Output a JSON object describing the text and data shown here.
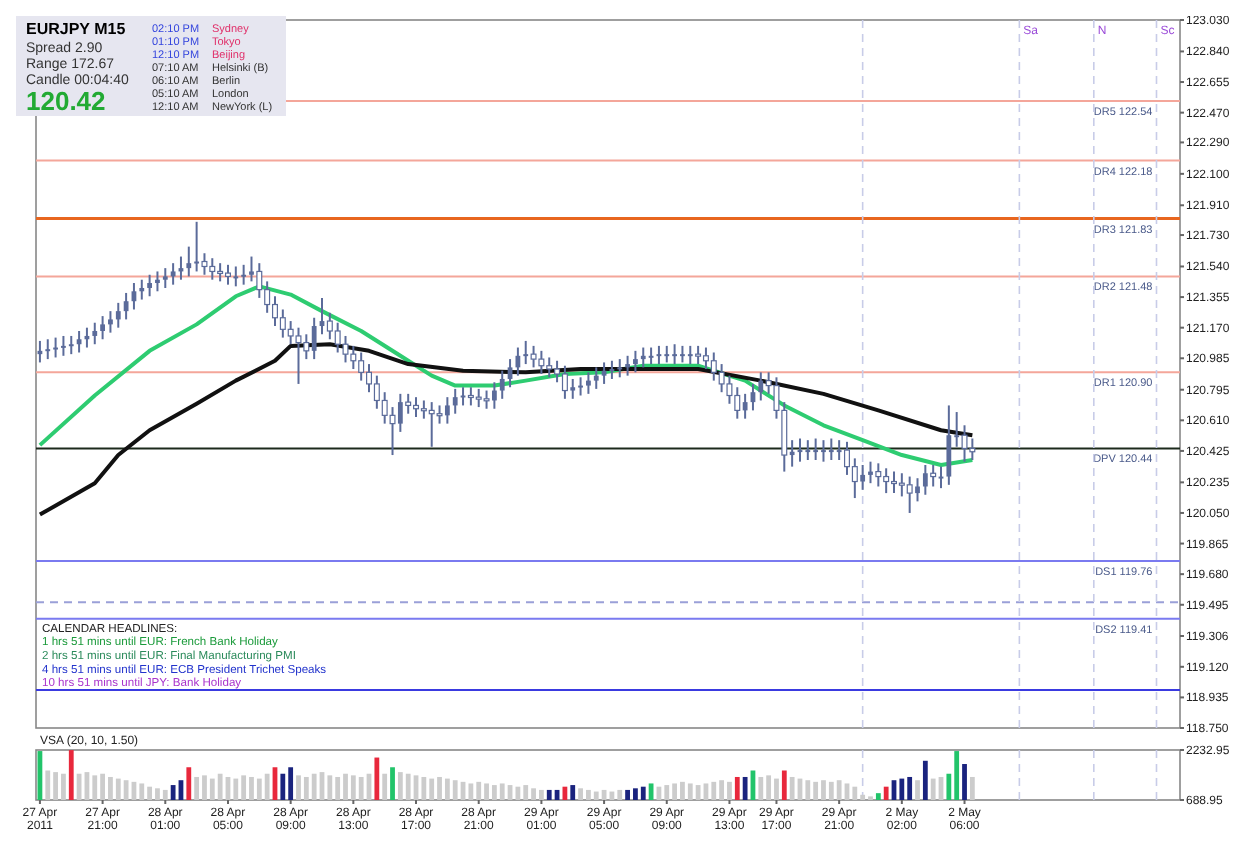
{
  "chart_data": [
    {
      "type": "candlestick",
      "title": "EURJPY  M15",
      "color": "#5b6b9a",
      "categories": [
        null,
        null,
        null,
        null,
        null,
        null,
        null,
        null,
        null,
        null,
        null,
        null,
        null,
        null,
        null,
        null,
        null,
        null,
        null,
        null,
        null,
        null,
        null,
        null,
        null,
        null,
        null,
        null,
        null,
        null,
        null,
        null,
        null,
        null,
        null,
        null,
        null,
        null,
        null,
        null,
        null,
        null,
        null,
        null,
        null,
        null,
        null,
        null,
        null,
        null,
        null,
        null,
        null,
        null,
        null,
        null,
        null,
        null,
        null,
        null,
        null,
        null,
        null,
        null,
        null,
        null,
        null,
        null,
        null,
        null,
        null,
        null,
        null,
        null,
        null,
        null,
        null,
        null,
        null,
        null,
        null,
        null,
        null,
        null,
        null,
        null,
        null,
        null,
        null,
        null,
        null,
        null,
        null,
        null,
        null,
        null,
        null,
        null,
        null,
        null,
        null,
        null,
        null,
        null,
        null,
        null,
        null,
        null,
        null,
        null,
        null,
        null,
        null,
        null,
        null,
        null,
        null,
        null,
        null,
        null,
        null,
        null,
        null,
        null,
        null,
        null,
        null,
        null,
        null,
        null,
        null,
        null,
        null,
        null,
        null,
        null,
        null,
        null,
        null,
        null,
        null,
        null,
        null,
        null,
        null,
        null
      ],
      "ylim": [
        118.75,
        123.03
      ],
      "yticks": [
        {
          "value": 123.03,
          "label": "123.030"
        },
        {
          "value": 122.84,
          "label": "122.840"
        },
        {
          "value": 122.655,
          "label": "122.655"
        },
        {
          "value": 122.47,
          "label": "122.470"
        },
        {
          "value": 122.29,
          "label": "122.290"
        },
        {
          "value": 122.1,
          "label": "122.100"
        },
        {
          "value": 121.91,
          "label": "121.910"
        },
        {
          "value": 121.73,
          "label": "121.730"
        },
        {
          "value": 121.54,
          "label": "121.540"
        },
        {
          "value": 121.355,
          "label": "121.355"
        },
        {
          "value": 121.17,
          "label": "121.170"
        },
        {
          "value": 120.985,
          "label": "120.985"
        },
        {
          "value": 120.795,
          "label": "120.795"
        },
        {
          "value": 120.61,
          "label": "120.610"
        },
        {
          "value": 120.425,
          "label": "120.425"
        },
        {
          "value": 120.235,
          "label": "120.235"
        },
        {
          "value": 120.05,
          "label": "120.050"
        },
        {
          "value": 119.865,
          "label": "119.865"
        },
        {
          "value": 119.68,
          "label": "119.680"
        },
        {
          "value": 119.495,
          "label": "119.495"
        },
        {
          "value": 119.306,
          "label": "119.306"
        },
        {
          "value": 119.12,
          "label": "119.120"
        },
        {
          "value": 118.935,
          "label": "118.935"
        },
        {
          "value": 118.75,
          "label": "118.750"
        }
      ],
      "ohlc": [
        [
          121.01,
          121.09,
          120.96,
          121.03
        ],
        [
          121.03,
          121.1,
          120.98,
          121.04
        ],
        [
          121.04,
          121.11,
          120.99,
          121.05
        ],
        [
          121.05,
          121.12,
          121.0,
          121.06
        ],
        [
          121.06,
          121.12,
          121.01,
          121.07
        ],
        [
          121.07,
          121.15,
          121.02,
          121.1
        ],
        [
          121.1,
          121.17,
          121.05,
          121.12
        ],
        [
          121.12,
          121.2,
          121.07,
          121.15
        ],
        [
          121.15,
          121.24,
          121.1,
          121.19
        ],
        [
          121.19,
          121.27,
          121.14,
          121.22
        ],
        [
          121.22,
          121.32,
          121.17,
          121.27
        ],
        [
          121.27,
          121.38,
          121.22,
          121.33
        ],
        [
          121.33,
          121.44,
          121.28,
          121.39
        ],
        [
          121.39,
          121.46,
          121.34,
          121.41
        ],
        [
          121.41,
          121.49,
          121.36,
          121.44
        ],
        [
          121.44,
          121.51,
          121.39,
          121.46
        ],
        [
          121.46,
          121.53,
          121.41,
          121.48
        ],
        [
          121.48,
          121.56,
          121.43,
          121.51
        ],
        [
          121.51,
          121.6,
          121.46,
          121.53
        ],
        [
          121.53,
          121.66,
          121.48,
          121.56
        ],
        [
          121.56,
          121.81,
          121.51,
          121.57
        ],
        [
          121.57,
          121.62,
          121.49,
          121.54
        ],
        [
          121.54,
          121.59,
          121.46,
          121.51
        ],
        [
          121.51,
          121.56,
          121.45,
          121.5
        ],
        [
          121.5,
          121.55,
          121.43,
          121.48
        ],
        [
          121.48,
          121.54,
          121.42,
          121.48
        ],
        [
          121.48,
          121.55,
          121.43,
          121.49
        ],
        [
          121.49,
          121.6,
          121.45,
          121.51
        ],
        [
          121.51,
          121.56,
          121.35,
          121.4
        ],
        [
          121.4,
          121.45,
          121.26,
          121.31
        ],
        [
          121.31,
          121.36,
          121.18,
          121.23
        ],
        [
          121.23,
          121.28,
          121.11,
          121.16
        ],
        [
          121.16,
          121.21,
          121.07,
          121.12
        ],
        [
          121.12,
          121.17,
          120.83,
          121.08
        ],
        [
          121.08,
          121.13,
          120.98,
          121.03
        ],
        [
          121.03,
          121.23,
          120.98,
          121.18
        ],
        [
          121.18,
          121.35,
          121.13,
          121.21
        ],
        [
          121.21,
          121.26,
          121.1,
          121.15
        ],
        [
          121.15,
          121.2,
          121.02,
          121.07
        ],
        [
          121.07,
          121.12,
          120.96,
          121.01
        ],
        [
          121.01,
          121.06,
          120.92,
          120.97
        ],
        [
          120.97,
          121.02,
          120.85,
          120.9
        ],
        [
          120.9,
          120.95,
          120.78,
          120.83
        ],
        [
          120.83,
          120.88,
          120.68,
          120.73
        ],
        [
          120.73,
          120.78,
          120.59,
          120.64
        ],
        [
          120.64,
          120.69,
          120.4,
          120.59
        ],
        [
          120.59,
          120.77,
          120.54,
          120.72
        ],
        [
          120.72,
          120.77,
          120.65,
          120.7
        ],
        [
          120.7,
          120.75,
          120.63,
          120.68
        ],
        [
          120.68,
          120.73,
          120.62,
          120.67
        ],
        [
          120.67,
          120.72,
          120.45,
          120.65
        ],
        [
          120.65,
          120.7,
          120.59,
          120.64
        ],
        [
          120.64,
          120.75,
          120.59,
          120.7
        ],
        [
          120.7,
          120.8,
          120.65,
          120.75
        ],
        [
          120.75,
          120.81,
          120.7,
          120.76
        ],
        [
          120.76,
          120.81,
          120.7,
          120.75
        ],
        [
          120.75,
          120.8,
          120.69,
          120.74
        ],
        [
          120.74,
          120.79,
          120.68,
          120.73
        ],
        [
          120.73,
          120.84,
          120.68,
          120.79
        ],
        [
          120.79,
          120.91,
          120.74,
          120.86
        ],
        [
          120.86,
          120.98,
          120.81,
          120.93
        ],
        [
          120.93,
          121.05,
          120.88,
          121.0
        ],
        [
          121.0,
          121.09,
          120.95,
          121.01
        ],
        [
          121.01,
          121.06,
          120.93,
          120.98
        ],
        [
          120.98,
          121.03,
          120.89,
          120.94
        ],
        [
          120.94,
          120.99,
          120.87,
          120.92
        ],
        [
          120.92,
          120.97,
          120.84,
          120.89
        ],
        [
          120.89,
          120.94,
          120.74,
          120.79
        ],
        [
          120.79,
          120.86,
          120.74,
          120.81
        ],
        [
          120.81,
          120.87,
          120.76,
          120.82
        ],
        [
          120.82,
          120.9,
          120.77,
          120.85
        ],
        [
          120.85,
          120.93,
          120.8,
          120.88
        ],
        [
          120.88,
          120.96,
          120.83,
          120.91
        ],
        [
          120.91,
          120.97,
          120.86,
          120.92
        ],
        [
          120.92,
          120.98,
          120.87,
          120.93
        ],
        [
          120.93,
          121.0,
          120.88,
          120.95
        ],
        [
          120.95,
          121.03,
          120.9,
          120.98
        ],
        [
          120.98,
          121.05,
          120.93,
          121.0
        ],
        [
          121.0,
          121.05,
          120.95,
          121.0
        ],
        [
          121.0,
          121.06,
          120.95,
          121.01
        ],
        [
          121.01,
          121.06,
          120.96,
          121.01
        ],
        [
          121.01,
          121.07,
          120.95,
          121.01
        ],
        [
          121.01,
          121.06,
          120.96,
          121.01
        ],
        [
          121.01,
          121.06,
          120.95,
          121.01
        ],
        [
          121.01,
          121.06,
          120.95,
          121.0
        ],
        [
          121.0,
          121.05,
          120.92,
          120.97
        ],
        [
          120.97,
          121.02,
          120.85,
          120.9
        ],
        [
          120.9,
          120.95,
          120.78,
          120.83
        ],
        [
          120.83,
          120.88,
          120.71,
          120.76
        ],
        [
          120.76,
          120.81,
          120.62,
          120.67
        ],
        [
          120.67,
          120.77,
          120.62,
          120.72
        ],
        [
          120.72,
          120.83,
          120.67,
          120.78
        ],
        [
          120.78,
          120.9,
          120.73,
          120.85
        ],
        [
          120.85,
          120.9,
          120.77,
          120.82
        ],
        [
          120.82,
          120.87,
          120.62,
          120.67
        ],
        [
          120.67,
          120.72,
          120.3,
          120.4
        ],
        [
          120.4,
          120.49,
          120.33,
          120.42
        ],
        [
          120.42,
          120.5,
          120.36,
          120.43
        ],
        [
          120.43,
          120.49,
          120.37,
          120.43
        ],
        [
          120.43,
          120.5,
          120.37,
          120.43
        ],
        [
          120.43,
          120.49,
          120.36,
          120.43
        ],
        [
          120.43,
          120.5,
          120.37,
          120.43
        ],
        [
          120.43,
          120.49,
          120.37,
          120.43
        ],
        [
          120.43,
          120.48,
          120.28,
          120.33
        ],
        [
          120.33,
          120.38,
          120.14,
          120.24
        ],
        [
          120.24,
          120.34,
          120.19,
          120.28
        ],
        [
          120.28,
          120.36,
          120.23,
          120.3
        ],
        [
          120.3,
          120.35,
          120.21,
          120.27
        ],
        [
          120.27,
          120.32,
          120.17,
          120.24
        ],
        [
          120.24,
          120.3,
          120.17,
          120.23
        ],
        [
          120.23,
          120.29,
          120.15,
          120.22
        ],
        [
          120.22,
          120.27,
          120.05,
          120.17
        ],
        [
          120.17,
          120.26,
          120.12,
          120.21
        ],
        [
          120.21,
          120.34,
          120.16,
          120.29
        ],
        [
          120.29,
          120.34,
          120.21,
          120.27
        ],
        [
          120.27,
          120.33,
          120.2,
          120.27
        ],
        [
          120.27,
          120.7,
          120.22,
          120.52
        ],
        [
          120.52,
          120.66,
          120.45,
          120.52
        ],
        [
          120.52,
          120.58,
          120.36,
          120.44
        ],
        [
          120.44,
          120.5,
          120.37,
          120.42
        ],
        null,
        null,
        null,
        null,
        null,
        null,
        null,
        null,
        null,
        null,
        null,
        null,
        null,
        null,
        null,
        null,
        null,
        null,
        null,
        null,
        null,
        null,
        null,
        null,
        null,
        null
      ],
      "series": [
        {
          "type": "line",
          "color": "#2ecc71",
          "values": [
            120.46,
            null,
            null,
            null,
            null,
            null,
            null,
            120.76,
            null,
            null,
            null,
            null,
            null,
            null,
            121.03,
            null,
            null,
            null,
            null,
            null,
            121.19,
            null,
            null,
            null,
            null,
            121.36,
            null,
            null,
            121.42,
            null,
            null,
            null,
            121.37,
            null,
            null,
            null,
            121.27,
            null,
            null,
            null,
            null,
            121.15,
            null,
            null,
            null,
            null,
            121.0,
            null,
            null,
            null,
            120.88,
            null,
            null,
            120.82,
            null,
            null,
            null,
            null,
            120.82,
            null,
            null,
            null,
            120.85,
            null,
            null,
            null,
            null,
            120.89,
            null,
            null,
            null,
            null,
            120.9,
            null,
            null,
            null,
            null,
            120.94,
            null,
            null,
            null,
            null,
            null,
            null,
            120.94,
            null,
            null,
            null,
            null,
            null,
            120.85,
            null,
            null,
            null,
            null,
            120.7,
            null,
            null,
            null,
            null,
            120.58,
            null,
            null,
            null,
            null,
            120.49,
            null,
            null,
            null,
            null,
            120.4,
            null,
            null,
            null,
            null,
            120.34,
            null,
            null,
            null,
            120.37,
            null,
            null,
            null,
            null,
            null,
            null,
            null,
            null,
            null,
            null,
            null,
            null,
            null,
            null,
            null,
            null,
            null,
            null,
            null,
            null,
            null,
            null,
            null,
            null,
            null,
            null
          ]
        },
        {
          "type": "line",
          "color": "#111111",
          "values": [
            120.04,
            null,
            null,
            null,
            null,
            null,
            null,
            120.23,
            null,
            null,
            120.4,
            null,
            null,
            null,
            120.55,
            null,
            null,
            null,
            null,
            null,
            120.71,
            null,
            null,
            null,
            null,
            120.85,
            null,
            null,
            null,
            null,
            120.97,
            null,
            121.06,
            null,
            null,
            null,
            null,
            121.07,
            null,
            null,
            null,
            null,
            121.03,
            null,
            null,
            null,
            null,
            120.95,
            null,
            null,
            null,
            null,
            null,
            null,
            120.91,
            null,
            null,
            null,
            null,
            null,
            null,
            null,
            120.9,
            null,
            null,
            null,
            null,
            null,
            null,
            120.92,
            null,
            null,
            null,
            null,
            null,
            null,
            null,
            120.92,
            null,
            null,
            null,
            null,
            null,
            null,
            120.92,
            null,
            null,
            null,
            null,
            null,
            null,
            null,
            120.85,
            null,
            null,
            null,
            null,
            null,
            null,
            null,
            120.77,
            null,
            null,
            null,
            null,
            null,
            null,
            120.67,
            null,
            null,
            null,
            null,
            null,
            null,
            null,
            120.55,
            null,
            null,
            null,
            120.52,
            null,
            null,
            null,
            null,
            null,
            null,
            null,
            null,
            null,
            null,
            null,
            null,
            null,
            null,
            null,
            null,
            null,
            null,
            null,
            null,
            null,
            null,
            null,
            null,
            null,
            null
          ]
        }
      ],
      "ref_lines": [
        {
          "axis": "y",
          "value": 122.54,
          "label": "DR5 122.54",
          "color": "#f4a69a"
        },
        {
          "axis": "y",
          "value": 122.18,
          "label": "DR4 122.18",
          "color": "#f4a69a"
        },
        {
          "axis": "y",
          "value": 121.83,
          "label": "DR3 121.83",
          "color": "#e8661f"
        },
        {
          "axis": "y",
          "value": 121.48,
          "label": "DR2 121.48",
          "color": "#f4a69a"
        },
        {
          "axis": "y",
          "value": 120.9,
          "label": "DR1 120.90",
          "color": "#f4a69a"
        },
        {
          "axis": "y",
          "value": 120.44,
          "label": "DPV 120.44",
          "color": "#1c2a1c"
        },
        {
          "axis": "y",
          "value": 119.76,
          "label": "DS1 119.76",
          "color": "#7a7af0"
        },
        {
          "axis": "y",
          "value": 119.51,
          "label": null,
          "color": "#9aa0d8",
          "line_style": "dashed"
        },
        {
          "axis": "y",
          "value": 119.41,
          "label": "DS2 119.41",
          "color": "#7a7af0"
        },
        {
          "axis": "y",
          "value": 118.98,
          "label": null,
          "color": "#3a3ae0"
        }
      ],
      "annotations": [
        "Spread 2.90",
        "Range 172.67",
        "Candle 00:04:40",
        "120.42",
        "02:10 PM",
        "Sydney",
        "01:10 PM",
        "Tokyo",
        "12:10 PM",
        "Beijing",
        "07:10 AM",
        "Helsinki (B)",
        "06:10 AM",
        "Berlin",
        "05:10 AM",
        "London",
        "12:10 AM",
        "NewYork (L)",
        "CALENDAR HEADLINES:",
        "1 hrs 51 mins until EUR: French Bank Holiday",
        "2 hrs 51 mins until EUR: Final Manufacturing PMI",
        "4 hrs 51 mins until EUR: ECB President Trichet Speaks",
        "10 hrs 51 mins until JPY: Bank Holiday",
        "Sa",
        "N",
        "Sc"
      ]
    },
    {
      "type": "bar",
      "title": "VSA (20, 10, 1.50)",
      "categories": [
        "27 Apr 2011",
        null,
        null,
        null,
        null,
        null,
        null,
        null,
        "27 Apr 21:00",
        null,
        null,
        null,
        null,
        null,
        null,
        null,
        "28 Apr 01:00",
        null,
        null,
        null,
        null,
        null,
        null,
        null,
        "28 Apr 05:00",
        null,
        null,
        null,
        null,
        null,
        null,
        null,
        "28 Apr 09:00",
        null,
        null,
        null,
        null,
        null,
        null,
        null,
        "28 Apr 13:00",
        null,
        null,
        null,
        null,
        null,
        null,
        null,
        "28 Apr 17:00",
        null,
        null,
        null,
        null,
        null,
        null,
        null,
        "28 Apr 21:00",
        null,
        null,
        null,
        null,
        null,
        null,
        null,
        "29 Apr 01:00",
        null,
        null,
        null,
        null,
        null,
        null,
        null,
        "29 Apr 05:00",
        null,
        null,
        null,
        null,
        null,
        null,
        null,
        "29 Apr 09:00",
        null,
        null,
        null,
        null,
        null,
        null,
        null,
        "29 Apr 13:00",
        null,
        null,
        null,
        null,
        null,
        "29 Apr 17:00",
        null,
        null,
        null,
        null,
        null,
        null,
        null,
        "29 Apr 21:00",
        null,
        null,
        null,
        null,
        null,
        null,
        null,
        "2 May 02:00",
        null,
        null,
        null,
        null,
        null,
        null,
        null,
        "2 May 06:00",
        null,
        null,
        null,
        null,
        null,
        null,
        null,
        null,
        null,
        null,
        null,
        null,
        null,
        null,
        null,
        null,
        null,
        null,
        null,
        null,
        null,
        null,
        null,
        null,
        null,
        null,
        null
      ],
      "ylim": [
        688.95,
        2232.95
      ],
      "yticks": [
        {
          "value": 2232.95,
          "label": "2232.95"
        },
        {
          "value": 688.95,
          "label": "688.95"
        }
      ],
      "values": [
        2200,
        1600,
        1550,
        1500,
        2230,
        1500,
        1550,
        1450,
        1500,
        1400,
        1350,
        1300,
        1250,
        1200,
        1100,
        1050,
        1000,
        1150,
        1300,
        1700,
        1400,
        1450,
        1350,
        1500,
        1400,
        1350,
        1450,
        1400,
        1350,
        1500,
        1700,
        1500,
        1700,
        1450,
        1400,
        1500,
        1550,
        1450,
        1400,
        1500,
        1450,
        1400,
        1500,
        2000,
        1500,
        1700,
        1550,
        1500,
        1450,
        1400,
        1350,
        1400,
        1350,
        1300,
        1250,
        1200,
        1250,
        1200,
        1150,
        1200,
        1150,
        1100,
        1150,
        1050,
        1000,
        1000,
        1000,
        1100,
        1150,
        1050,
        1000,
        950,
        1000,
        950,
        1000,
        1000,
        1050,
        1100,
        1200,
        1100,
        1150,
        1200,
        1250,
        1200,
        1150,
        1200,
        1250,
        1300,
        1250,
        1400,
        1400,
        1600,
        1400,
        1450,
        1350,
        1600,
        1400,
        1350,
        1300,
        1250,
        1300,
        1250,
        1300,
        1200,
        1100,
        850,
        800,
        900,
        1100,
        1300,
        1350,
        1400,
        1300,
        1900,
        1350,
        1400,
        1500,
        2200,
        1800,
        1400,
        null,
        null,
        null,
        null,
        null,
        null,
        null,
        null,
        null,
        null,
        null,
        null,
        null,
        null,
        null,
        null,
        null,
        null,
        null,
        null,
        null,
        null,
        null,
        null,
        null,
        null
      ],
      "colors": [
        "#22c46a",
        "#cccccc",
        "#cccccc",
        "#cccccc",
        "#e8283c",
        "#cccccc",
        "#cccccc",
        "#cccccc",
        "#cccccc",
        "#cccccc",
        "#cccccc",
        "#cccccc",
        "#cccccc",
        "#cccccc",
        "#cccccc",
        "#cccccc",
        "#cccccc",
        "#1a237e",
        "#1a237e",
        "#e8283c",
        "#cccccc",
        "#cccccc",
        "#cccccc",
        "#cccccc",
        "#cccccc",
        "#cccccc",
        "#cccccc",
        "#cccccc",
        "#cccccc",
        "#cccccc",
        "#e8283c",
        "#1a237e",
        "#1a237e",
        "#cccccc",
        "#cccccc",
        "#cccccc",
        "#cccccc",
        "#cccccc",
        "#cccccc",
        "#cccccc",
        "#cccccc",
        "#cccccc",
        "#cccccc",
        "#e8283c",
        "#cccccc",
        "#22c46a",
        "#cccccc",
        "#cccccc",
        "#cccccc",
        "#cccccc",
        "#cccccc",
        "#cccccc",
        "#cccccc",
        "#cccccc",
        "#cccccc",
        "#cccccc",
        "#cccccc",
        "#cccccc",
        "#cccccc",
        "#cccccc",
        "#cccccc",
        "#cccccc",
        "#cccccc",
        "#cccccc",
        "#cccccc",
        "#1a237e",
        "#1a237e",
        "#e8283c",
        "#1a237e",
        "#cccccc",
        "#cccccc",
        "#cccccc",
        "#cccccc",
        "#cccccc",
        "#cccccc",
        "#1a237e",
        "#1a237e",
        "#1a237e",
        "#22c46a",
        "#cccccc",
        "#cccccc",
        "#cccccc",
        "#cccccc",
        "#cccccc",
        "#cccccc",
        "#cccccc",
        "#cccccc",
        "#cccccc",
        "#cccccc",
        "#e8283c",
        "#1a237e",
        "#22c46a",
        "#cccccc",
        "#cccccc",
        "#cccccc",
        "#e8283c",
        "#cccccc",
        "#cccccc",
        "#cccccc",
        "#cccccc",
        "#cccccc",
        "#cccccc",
        "#cccccc",
        "#cccccc",
        "#cccccc",
        "#cccccc",
        "#cccccc",
        "#22c46a",
        "#e8283c",
        "#1a237e",
        "#1a237e",
        "#1a237e",
        "#cccccc",
        "#1a237e",
        "#cccccc",
        "#cccccc",
        "#22c46a",
        "#22c46a",
        "#1a237e",
        "#cccccc",
        null,
        null,
        null,
        null,
        null,
        null,
        null,
        null,
        null,
        null,
        null,
        null,
        null,
        null,
        null,
        null,
        null,
        null,
        null,
        null,
        null,
        null,
        null,
        null,
        null,
        null
      ]
    }
  ]
}
